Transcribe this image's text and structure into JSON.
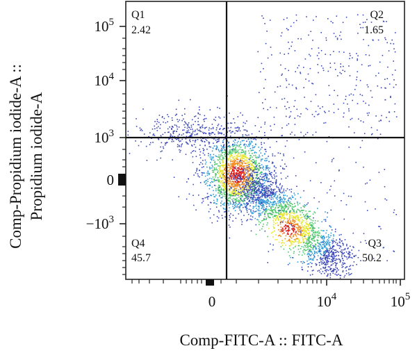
{
  "chart_data": {
    "type": "scatter",
    "plot_kind": "flow cytometry density dot plot (quadrant gate)",
    "xlabel": "Comp-FITC-A :: FITC-A",
    "ylabel_lines": [
      "Comp-Propidium iodide-A ::",
      "Propidium iodide-A"
    ],
    "x_scale": "biexponential",
    "y_scale": "biexponential",
    "x_ticks": [
      {
        "base": "0",
        "exp": "",
        "value": 0
      },
      {
        "base": "10",
        "exp": "4",
        "value": 10000
      },
      {
        "base": "10",
        "exp": "5",
        "value": 100000
      }
    ],
    "y_ticks": [
      {
        "base": "10",
        "exp": "5",
        "value": 100000
      },
      {
        "base": "10",
        "exp": "4",
        "value": 10000
      },
      {
        "base": "10",
        "exp": "3",
        "value": 1000
      },
      {
        "base": "0",
        "exp": "",
        "value": 0
      },
      {
        "base": "−10",
        "exp": "3",
        "value": -1000
      }
    ],
    "gate": {
      "x_value": 1300,
      "y_value": 1000
    },
    "quadrants": [
      {
        "name": "Q1",
        "percent": "2.42"
      },
      {
        "name": "Q2",
        "percent": "1.65"
      },
      {
        "name": "Q3",
        "percent": "50.2"
      },
      {
        "name": "Q4",
        "percent": "45.7"
      }
    ],
    "density_colors": [
      "#3a47b8",
      "#2f9bd6",
      "#4cc46a",
      "#e7e52a",
      "#f08a1c",
      "#e01f1a"
    ],
    "grid": false,
    "legend": "none"
  }
}
